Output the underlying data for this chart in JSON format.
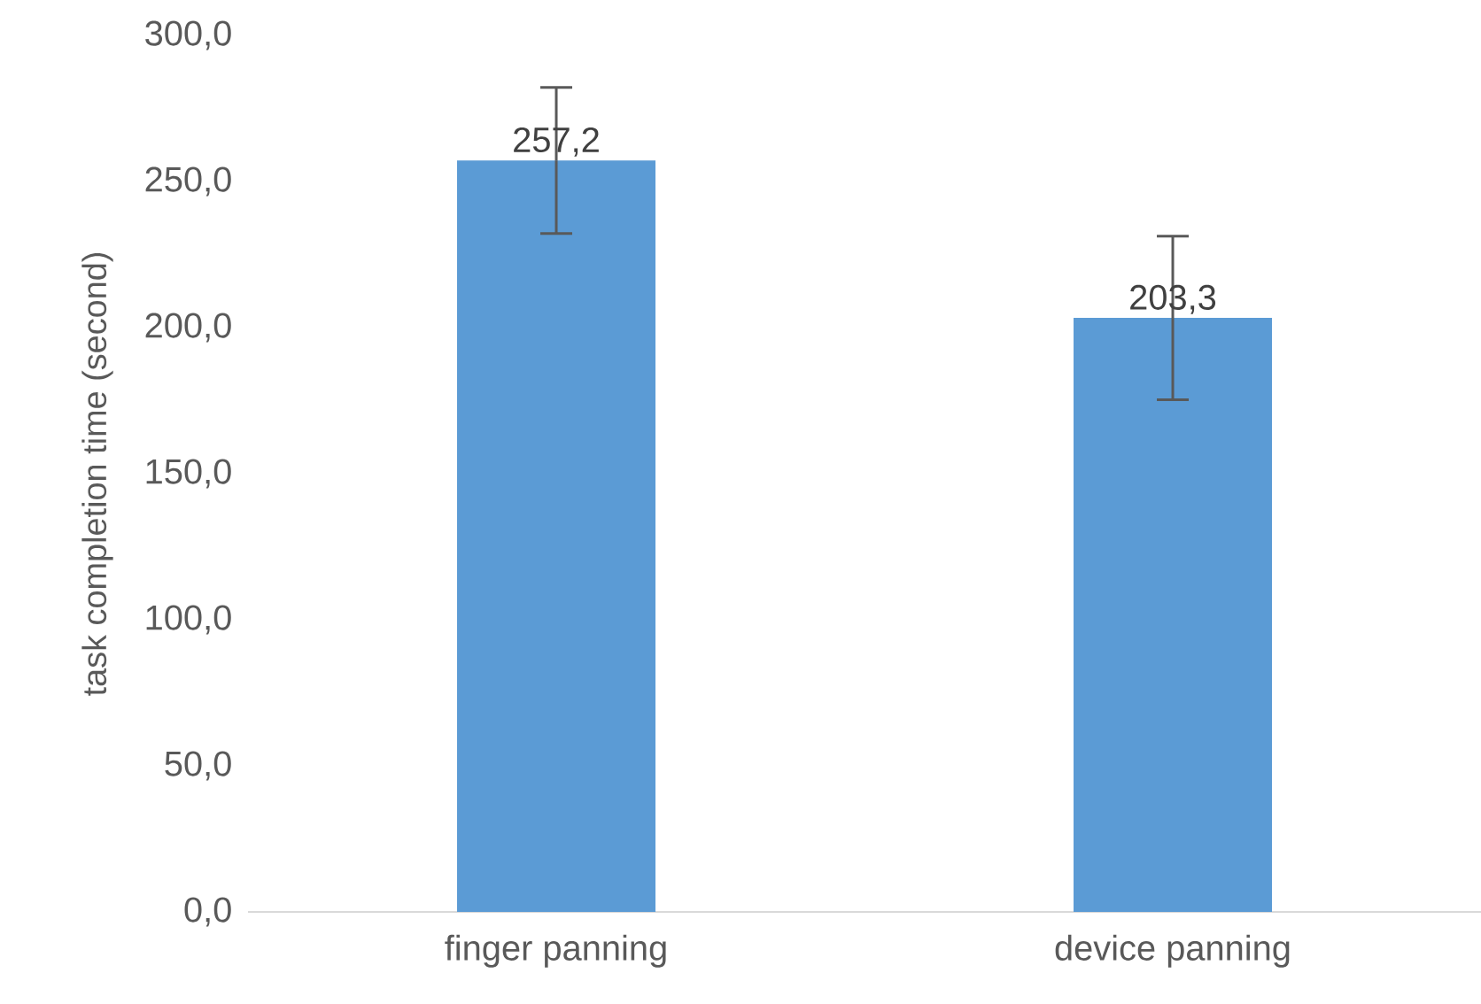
{
  "chart_data": {
    "type": "bar",
    "ylabel": "task completion time (second)",
    "categories": [
      "finger panning",
      "device panning"
    ],
    "values": [
      257.2,
      203.3
    ],
    "value_labels": [
      "257,2",
      "203,3"
    ],
    "errors": [
      25,
      28
    ],
    "color": "#5b9bd5",
    "ylim": [
      0,
      300
    ],
    "yticks": [
      {
        "value": 0,
        "label": "0,0"
      },
      {
        "value": 50,
        "label": "50,0"
      },
      {
        "value": 100,
        "label": "100,0"
      },
      {
        "value": 150,
        "label": "150,0"
      },
      {
        "value": 200,
        "label": "200,0"
      },
      {
        "value": 250,
        "label": "250,0"
      },
      {
        "value": 300,
        "label": "300,0"
      }
    ],
    "tick_labels": true
  }
}
